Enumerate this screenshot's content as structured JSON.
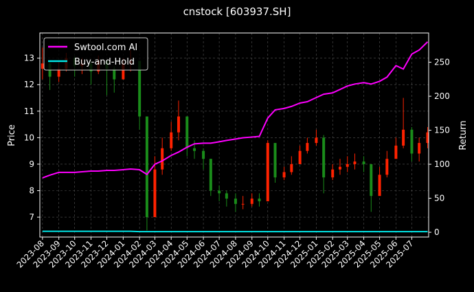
{
  "chart_data": {
    "type": "line",
    "title": "cnstock [603937.SH]",
    "ylabel_left": "Price",
    "ylabel_right": "Return",
    "xlim": [
      "2023-07-27",
      "2025-08-02"
    ],
    "ylim_left": [
      6.25,
      13.95
    ],
    "ylim_right": [
      -7,
      293
    ],
    "yticks_left": [
      7,
      8,
      9,
      10,
      11,
      12,
      13
    ],
    "yticks_right": [
      0,
      50,
      100,
      150,
      200,
      250
    ],
    "xticks": [
      "2023-08",
      "2023-09",
      "2023-10",
      "2023-11",
      "2023-12",
      "2024-01",
      "2024-02",
      "2024-03",
      "2024-04",
      "2024-05",
      "2024-06",
      "2024-07",
      "2024-08",
      "2024-09",
      "2024-10",
      "2024-11",
      "2024-12",
      "2025-01",
      "2025-02",
      "2025-03",
      "2025-04",
      "2025-05",
      "2025-06",
      "2025-07"
    ],
    "grid": true,
    "legend_position": "top-left",
    "colors": {
      "background": "#000000",
      "strategy": "#ff00ff",
      "buy_hold": "#00e5e5",
      "up": "#ff2200",
      "down": "#1a8c1a",
      "grid": "#555555"
    },
    "dates": [
      "2023-08-01",
      "2023-08-15",
      "2023-09-01",
      "2023-09-15",
      "2023-10-01",
      "2023-10-15",
      "2023-11-01",
      "2023-11-15",
      "2023-12-01",
      "2023-12-15",
      "2024-01-01",
      "2024-01-15",
      "2024-02-01",
      "2024-02-15",
      "2024-03-01",
      "2024-03-15",
      "2024-04-01",
      "2024-04-15",
      "2024-05-01",
      "2024-05-15",
      "2024-06-01",
      "2024-06-15",
      "2024-07-01",
      "2024-07-15",
      "2024-08-01",
      "2024-08-15",
      "2024-09-01",
      "2024-09-15",
      "2024-10-01",
      "2024-10-15",
      "2024-11-01",
      "2024-11-15",
      "2024-12-01",
      "2024-12-15",
      "2025-01-01",
      "2025-01-15",
      "2025-02-01",
      "2025-02-15",
      "2025-03-01",
      "2025-03-15",
      "2025-04-01",
      "2025-04-15",
      "2025-05-01",
      "2025-05-15",
      "2025-06-01",
      "2025-06-15",
      "2025-07-01",
      "2025-07-15",
      "2025-07-31"
    ],
    "price_close": [
      12.8,
      12.3,
      12.6,
      13.0,
      12.7,
      12.8,
      12.5,
      12.9,
      12.6,
      12.2,
      12.8,
      12.9,
      10.8,
      7.0,
      8.8,
      9.6,
      10.2,
      10.8,
      9.6,
      9.5,
      9.2,
      8.0,
      7.9,
      7.7,
      7.5,
      7.5,
      7.7,
      7.6,
      9.8,
      8.5,
      8.7,
      9.0,
      9.5,
      9.8,
      10.0,
      8.5,
      8.8,
      8.9,
      9.0,
      9.1,
      9.0,
      7.8,
      8.6,
      9.2,
      9.7,
      10.3,
      9.4,
      9.8,
      10.2
    ],
    "price_high": [
      13.4,
      12.9,
      12.9,
      13.2,
      13.1,
      13.0,
      12.9,
      13.1,
      12.9,
      12.7,
      13.0,
      13.3,
      11.6,
      8.5,
      9.3,
      10.0,
      10.6,
      11.4,
      10.8,
      9.9,
      9.6,
      9.2,
      8.2,
      8.0,
      7.9,
      7.8,
      7.9,
      7.9,
      9.9,
      9.7,
      8.9,
      9.3,
      9.7,
      10.0,
      10.3,
      10.1,
      9.0,
      9.2,
      9.3,
      9.4,
      9.3,
      9.0,
      8.9,
      9.5,
      10.0,
      11.5,
      10.4,
      10.0,
      10.4
    ],
    "price_low": [
      12.2,
      11.8,
      12.1,
      12.5,
      12.3,
      12.4,
      12.0,
      12.4,
      11.6,
      11.7,
      12.2,
      12.5,
      10.3,
      6.5,
      7.5,
      8.6,
      9.5,
      9.9,
      9.3,
      9.2,
      8.8,
      7.8,
      7.6,
      7.4,
      7.2,
      7.3,
      7.4,
      7.4,
      7.6,
      8.3,
      8.4,
      8.6,
      9.0,
      9.4,
      9.7,
      7.9,
      8.4,
      8.6,
      8.7,
      8.8,
      8.7,
      7.2,
      7.9,
      8.5,
      9.2,
      9.6,
      9.1,
      9.1,
      9.6
    ],
    "series": [
      {
        "name": "Swtool.com AI",
        "axis": "right",
        "values": [
          80,
          84,
          88,
          88,
          88,
          89,
          90,
          90,
          91,
          91,
          92,
          93,
          92,
          85,
          100,
          105,
          113,
          118,
          125,
          130,
          131,
          131,
          133,
          135,
          137,
          139,
          140,
          141,
          168,
          180,
          182,
          185,
          190,
          192,
          198,
          203,
          205,
          210,
          215,
          218,
          220,
          218,
          222,
          228,
          245,
          240,
          262,
          268,
          280
        ]
      },
      {
        "name": "Buy-and-Hold",
        "axis": "right",
        "values": [
          1.5,
          1.5,
          1.5,
          1.5,
          1.5,
          1.5,
          1.5,
          1.5,
          1.5,
          1.5,
          1.5,
          1.5,
          1,
          1,
          1,
          1,
          1,
          1,
          1,
          1,
          1,
          1,
          1,
          1,
          1,
          1,
          1,
          1,
          1,
          1,
          1,
          1,
          1,
          1,
          1,
          1,
          1,
          1,
          1,
          1,
          1,
          1,
          1,
          1,
          1,
          1,
          1,
          1,
          1
        ]
      }
    ]
  }
}
